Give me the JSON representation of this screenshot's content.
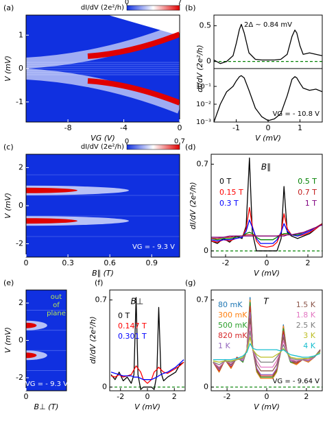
{
  "chart_data": [
    {
      "type": "heatmap",
      "panel_label": "(a)",
      "xlabel": "VG (V)",
      "ylabel": "V (mV)",
      "xlim": [
        -11,
        0
      ],
      "xticks": [
        -8,
        -4,
        0
      ],
      "ylim": [
        -1.6,
        1.6
      ],
      "yticks": [
        -1,
        0,
        1
      ],
      "colorbar": {
        "label": "dI/dV (2e²/h)",
        "ticks": [
          0,
          7
        ],
        "colors": [
          "#1030e0",
          "#ffffff",
          "#e00000"
        ]
      }
    },
    {
      "type": "line",
      "panel_label": "(b)",
      "annotation": "2Δ ~ 0.84 mV",
      "ylabel": "dI/dV (2e²/h)",
      "xlim": [
        -1.7,
        1.7
      ],
      "ylim": [
        -0.1,
        0.65
      ],
      "yticks": [
        0,
        0.5
      ],
      "x": [
        -1.7,
        -1.5,
        -1.3,
        -1.1,
        -1.0,
        -0.9,
        -0.84,
        -0.75,
        -0.6,
        -0.4,
        -0.2,
        0,
        0.2,
        0.4,
        0.6,
        0.75,
        0.84,
        0.9,
        1.0,
        1.1,
        1.3,
        1.5,
        1.7
      ],
      "series": [
        {
          "color": "#000000",
          "values": [
            0.02,
            -0.03,
            0.0,
            0.08,
            0.25,
            0.45,
            0.52,
            0.4,
            0.12,
            0.03,
            0.02,
            0.02,
            0.02,
            0.03,
            0.1,
            0.35,
            0.44,
            0.4,
            0.22,
            0.1,
            0.12,
            0.1,
            0.08
          ]
        }
      ],
      "reference_line": {
        "y": 0,
        "color": "#008000"
      }
    },
    {
      "type": "line",
      "log_y": true,
      "annotation": "VG = - 10.8 V",
      "xlabel": "V (mV)",
      "xlim": [
        -1.7,
        1.7
      ],
      "xticks": [
        -1,
        0,
        1
      ],
      "ylim": [
        0.001,
        1
      ],
      "yticks": [
        {
          "value": 0.001,
          "label": "10⁻³"
        },
        {
          "value": 0.01,
          "label": "10⁻²"
        },
        {
          "value": 0.1,
          "label": "10⁻¹"
        }
      ],
      "x": [
        -1.7,
        -1.5,
        -1.3,
        -1.1,
        -1.0,
        -0.9,
        -0.84,
        -0.75,
        -0.6,
        -0.4,
        -0.2,
        0,
        0.2,
        0.4,
        0.6,
        0.75,
        0.84,
        0.9,
        1.0,
        1.1,
        1.3,
        1.5,
        1.7
      ],
      "series": [
        {
          "color": "#000000",
          "values": [
            0.001,
            0.01,
            0.05,
            0.1,
            0.2,
            0.35,
            0.4,
            0.3,
            0.06,
            0.006,
            0.002,
            0.0012,
            0.0015,
            0.003,
            0.03,
            0.25,
            0.35,
            0.3,
            0.15,
            0.08,
            0.06,
            0.07,
            0.05
          ]
        }
      ]
    },
    {
      "type": "heatmap",
      "panel_label": "(c)",
      "xlabel": "B∥ (T)",
      "ylabel": "V (mV)",
      "annotation": "VG = - 9.3 V",
      "xlim": [
        0,
        1.1
      ],
      "xticks": [
        0,
        0.3,
        0.6,
        0.9
      ],
      "ylim": [
        -2.7,
        2.7
      ],
      "yticks": [
        -2,
        0,
        2
      ],
      "colorbar": {
        "label": "dI/dV (2e²/h)",
        "ticks": [
          0,
          0.7
        ],
        "colors": [
          "#1030e0",
          "#ffffff",
          "#e00000"
        ]
      }
    },
    {
      "type": "line",
      "panel_label": "(d)",
      "parameter": "B∥",
      "xlabel": "V (mV)",
      "ylabel": "dI/dV (2e²/h)",
      "xlim": [
        -2.7,
        2.7
      ],
      "xticks": [
        -2,
        0,
        2
      ],
      "ylim": [
        -0.05,
        0.78
      ],
      "yticks": [
        0,
        0.7
      ],
      "x": [
        -2.7,
        -2.4,
        -2.1,
        -1.8,
        -1.5,
        -1.2,
        -1.0,
        -0.84,
        -0.7,
        -0.5,
        -0.3,
        0,
        0.3,
        0.5,
        0.7,
        0.84,
        1.0,
        1.2,
        1.5,
        1.8,
        2.1,
        2.4,
        2.7
      ],
      "series": [
        {
          "name": "0 T",
          "color": "#000000",
          "values": [
            0.08,
            0.06,
            0.1,
            0.07,
            0.12,
            0.1,
            0.2,
            0.75,
            0.15,
            0.0,
            0.0,
            0.0,
            0.0,
            0.0,
            0.1,
            0.52,
            0.15,
            0.12,
            0.1,
            0.12,
            0.14,
            0.18,
            0.22
          ]
        },
        {
          "name": "0.15 T",
          "color": "#ff0000",
          "values": [
            0.08,
            0.07,
            0.09,
            0.08,
            0.1,
            0.11,
            0.18,
            0.35,
            0.2,
            0.08,
            0.04,
            0.03,
            0.04,
            0.07,
            0.15,
            0.3,
            0.18,
            0.13,
            0.12,
            0.13,
            0.15,
            0.18,
            0.22
          ]
        },
        {
          "name": "0.3 T",
          "color": "#0000ff",
          "values": [
            0.09,
            0.08,
            0.09,
            0.09,
            0.1,
            0.11,
            0.16,
            0.25,
            0.19,
            0.1,
            0.06,
            0.06,
            0.06,
            0.09,
            0.15,
            0.22,
            0.16,
            0.13,
            0.12,
            0.14,
            0.16,
            0.19,
            0.22
          ]
        },
        {
          "name": "0.5 T",
          "color": "#008000",
          "values": [
            0.1,
            0.09,
            0.1,
            0.1,
            0.11,
            0.12,
            0.14,
            0.15,
            0.14,
            0.11,
            0.09,
            0.09,
            0.09,
            0.11,
            0.13,
            0.14,
            0.14,
            0.13,
            0.13,
            0.15,
            0.17,
            0.19,
            0.22
          ]
        },
        {
          "name": "0.7 T",
          "color": "#c01818",
          "values": [
            0.1,
            0.1,
            0.11,
            0.11,
            0.12,
            0.12,
            0.13,
            0.13,
            0.13,
            0.12,
            0.12,
            0.12,
            0.12,
            0.12,
            0.13,
            0.13,
            0.13,
            0.13,
            0.14,
            0.15,
            0.17,
            0.19,
            0.22
          ]
        },
        {
          "name": "1 T",
          "color": "#800080",
          "values": [
            0.11,
            0.11,
            0.11,
            0.12,
            0.12,
            0.12,
            0.12,
            0.12,
            0.12,
            0.12,
            0.12,
            0.12,
            0.12,
            0.12,
            0.12,
            0.12,
            0.13,
            0.13,
            0.14,
            0.15,
            0.17,
            0.19,
            0.21
          ]
        }
      ],
      "reference_line": {
        "y": 0,
        "color": "#008000"
      }
    },
    {
      "type": "heatmap",
      "panel_label": "(e)",
      "xlabel": "B⊥ (T)",
      "ylabel": "V (mV)",
      "note": [
        "out",
        "of",
        "plane"
      ],
      "annotation": "VG = - 9.3 V",
      "xlim": [
        0,
        0.35
      ],
      "xticks": [
        0
      ],
      "ylim": [
        -2.7,
        2.7
      ],
      "yticks": [
        -2,
        0,
        2
      ],
      "colorbar": {
        "colors": [
          "#1030e0",
          "#ffffff",
          "#e00000"
        ]
      }
    },
    {
      "type": "line",
      "panel_label": "(f)",
      "parameter": "B⊥",
      "xlabel": "V (mV)",
      "ylabel": "dI/dV (2e²/h)",
      "xlim": [
        -2.8,
        2.8
      ],
      "xticks": [
        -2,
        0,
        2
      ],
      "ylim": [
        -0.03,
        0.78
      ],
      "yticks": [
        0,
        0.7
      ],
      "x": [
        -2.7,
        -2.4,
        -2.1,
        -1.8,
        -1.5,
        -1.2,
        -1.0,
        -0.84,
        -0.7,
        -0.5,
        -0.3,
        0,
        0.3,
        0.5,
        0.7,
        0.84,
        1.0,
        1.2,
        1.5,
        1.8,
        2.1,
        2.4,
        2.7
      ],
      "series": [
        {
          "name": "0 T",
          "color": "#000000",
          "values": [
            0.1,
            0.06,
            0.12,
            0.05,
            0.08,
            0.03,
            0.1,
            0.72,
            0.1,
            -0.02,
            0.0,
            0.0,
            0.0,
            -0.02,
            0.1,
            0.64,
            0.12,
            0.05,
            0.08,
            0.1,
            0.12,
            0.18,
            0.2
          ]
        },
        {
          "name": "0.147 T",
          "color": "#ff0000",
          "values": [
            0.09,
            0.08,
            0.1,
            0.08,
            0.09,
            0.1,
            0.14,
            0.17,
            0.15,
            0.12,
            0.06,
            0.03,
            0.06,
            0.12,
            0.14,
            0.16,
            0.14,
            0.12,
            0.11,
            0.13,
            0.15,
            0.17,
            0.2
          ]
        },
        {
          "name": "0.301 T",
          "color": "#0000ff",
          "values": [
            0.12,
            0.11,
            0.1,
            0.09,
            0.09,
            0.09,
            0.08,
            0.08,
            0.08,
            0.07,
            0.06,
            0.06,
            0.06,
            0.07,
            0.08,
            0.09,
            0.1,
            0.11,
            0.12,
            0.14,
            0.16,
            0.19,
            0.22
          ]
        }
      ],
      "reference_line": {
        "y": 0,
        "color": "#008000"
      }
    },
    {
      "type": "line",
      "panel_label": "(g)",
      "parameter": "T",
      "annotation": "VG = - 9.64 V",
      "xlabel": "V (mV)",
      "xlim": [
        -2.8,
        2.8
      ],
      "xticks": [
        -2,
        0,
        2
      ],
      "ylim": [
        -0.03,
        0.78
      ],
      "yticks": [
        0,
        0.7
      ],
      "x": [
        -2.7,
        -2.4,
        -2.1,
        -1.8,
        -1.5,
        -1.2,
        -1.0,
        -0.84,
        -0.7,
        -0.5,
        -0.3,
        0,
        0.3,
        0.5,
        0.7,
        0.84,
        1.0,
        1.2,
        1.5,
        1.8,
        2.1,
        2.4,
        2.7
      ],
      "series": [
        {
          "name": "80 mK",
          "color": "#1f77b4",
          "values": [
            0.2,
            0.12,
            0.22,
            0.15,
            0.24,
            0.2,
            0.3,
            0.72,
            0.3,
            0.12,
            0.07,
            0.07,
            0.07,
            0.12,
            0.28,
            0.5,
            0.3,
            0.2,
            0.18,
            0.22,
            0.2,
            0.24,
            0.3
          ]
        },
        {
          "name": "300 mK",
          "color": "#ff7f0e",
          "values": [
            0.2,
            0.12,
            0.22,
            0.15,
            0.24,
            0.2,
            0.3,
            0.7,
            0.3,
            0.12,
            0.07,
            0.07,
            0.07,
            0.12,
            0.28,
            0.49,
            0.3,
            0.2,
            0.18,
            0.22,
            0.2,
            0.24,
            0.3
          ]
        },
        {
          "name": "500 mK",
          "color": "#2ca02c",
          "values": [
            0.2,
            0.13,
            0.22,
            0.16,
            0.24,
            0.2,
            0.3,
            0.68,
            0.3,
            0.13,
            0.08,
            0.08,
            0.08,
            0.13,
            0.28,
            0.47,
            0.3,
            0.2,
            0.19,
            0.22,
            0.21,
            0.24,
            0.3
          ]
        },
        {
          "name": "820 mK",
          "color": "#d62728",
          "values": [
            0.2,
            0.13,
            0.22,
            0.16,
            0.24,
            0.21,
            0.3,
            0.65,
            0.3,
            0.14,
            0.09,
            0.09,
            0.09,
            0.14,
            0.28,
            0.45,
            0.3,
            0.21,
            0.19,
            0.22,
            0.21,
            0.24,
            0.3
          ]
        },
        {
          "name": "1 K",
          "color": "#9467bd",
          "values": [
            0.2,
            0.14,
            0.22,
            0.17,
            0.23,
            0.21,
            0.3,
            0.6,
            0.3,
            0.15,
            0.1,
            0.1,
            0.1,
            0.15,
            0.28,
            0.42,
            0.3,
            0.21,
            0.2,
            0.22,
            0.21,
            0.24,
            0.3
          ]
        },
        {
          "name": "1.5 K",
          "color": "#8c564b",
          "values": [
            0.2,
            0.15,
            0.21,
            0.18,
            0.23,
            0.22,
            0.3,
            0.55,
            0.3,
            0.18,
            0.13,
            0.13,
            0.13,
            0.18,
            0.28,
            0.4,
            0.3,
            0.22,
            0.2,
            0.22,
            0.22,
            0.24,
            0.3
          ]
        },
        {
          "name": "1.8 K",
          "color": "#e377c2",
          "values": [
            0.2,
            0.16,
            0.21,
            0.19,
            0.23,
            0.22,
            0.3,
            0.5,
            0.3,
            0.21,
            0.16,
            0.16,
            0.16,
            0.21,
            0.28,
            0.37,
            0.29,
            0.22,
            0.21,
            0.22,
            0.22,
            0.24,
            0.29
          ]
        },
        {
          "name": "2.5 K",
          "color": "#7f7f7f",
          "values": [
            0.2,
            0.18,
            0.21,
            0.2,
            0.22,
            0.23,
            0.29,
            0.45,
            0.3,
            0.24,
            0.2,
            0.2,
            0.2,
            0.24,
            0.28,
            0.34,
            0.28,
            0.23,
            0.22,
            0.22,
            0.23,
            0.24,
            0.29
          ]
        },
        {
          "name": "3 K",
          "color": "#bcbd22",
          "values": [
            0.21,
            0.2,
            0.21,
            0.21,
            0.22,
            0.24,
            0.29,
            0.4,
            0.3,
            0.26,
            0.24,
            0.24,
            0.24,
            0.26,
            0.28,
            0.31,
            0.28,
            0.24,
            0.23,
            0.23,
            0.23,
            0.25,
            0.28
          ]
        },
        {
          "name": "4 K",
          "color": "#17becf",
          "values": [
            0.22,
            0.22,
            0.22,
            0.22,
            0.23,
            0.25,
            0.28,
            0.35,
            0.31,
            0.3,
            0.3,
            0.3,
            0.3,
            0.3,
            0.29,
            0.3,
            0.28,
            0.26,
            0.25,
            0.24,
            0.24,
            0.25,
            0.27
          ]
        }
      ],
      "reference_line": {
        "y": 0,
        "color": "#008000"
      }
    }
  ]
}
